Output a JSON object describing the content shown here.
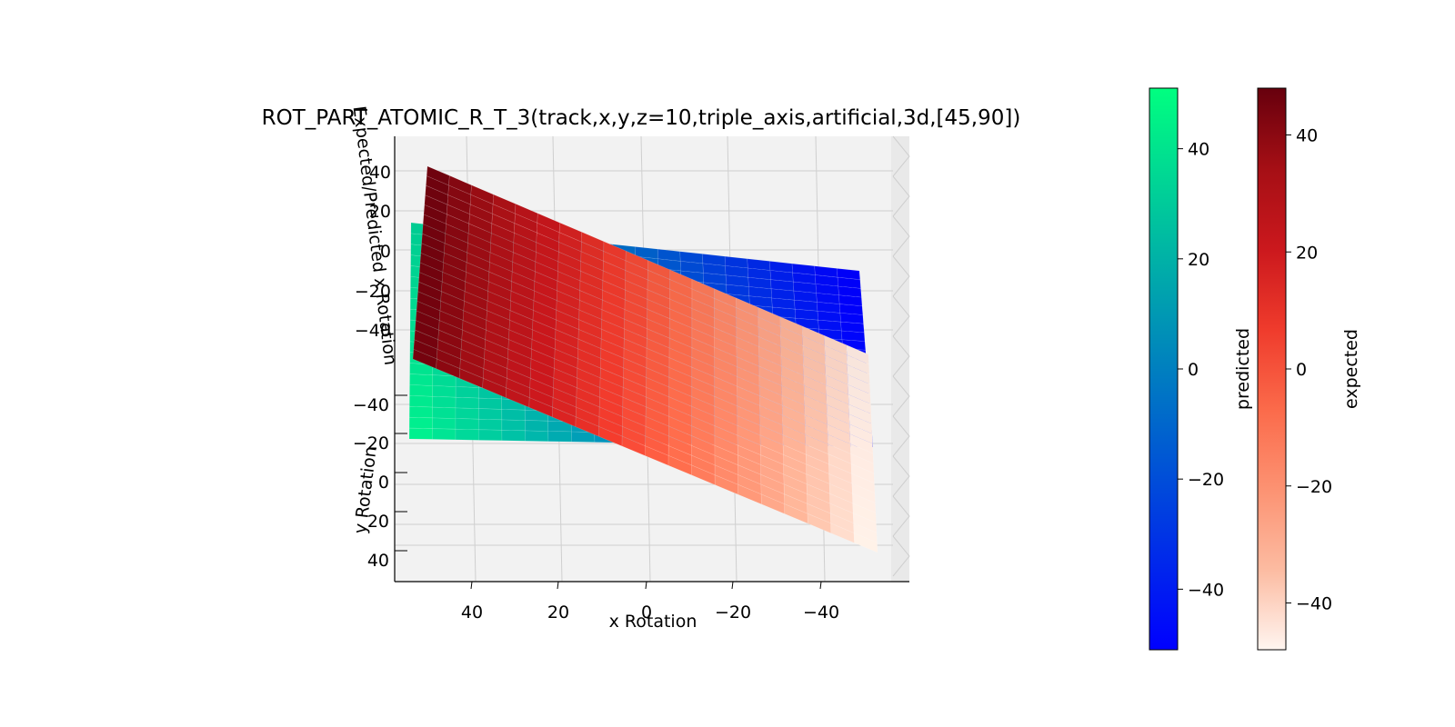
{
  "chart_data": {
    "type": "surface3d",
    "title": "ROT_PART_ATOMIC_R_T_3(track,x,y,z=10,triple_axis,artificial,3d,[45,90])",
    "xlabel": "x Rotation",
    "ylabel": "y Rotation",
    "zlabel": "Expected/Predicted x Rotation",
    "view": {
      "elev": 45,
      "azim": 90
    },
    "x_ticks": [
      40,
      20,
      0,
      -20,
      -40
    ],
    "x_tick_labels": [
      "40",
      "20",
      "0",
      "−20",
      "−40"
    ],
    "y_ticks": [
      -40,
      -20,
      0,
      20,
      40
    ],
    "y_tick_labels": [
      "−40",
      "−20",
      "0",
      "20",
      "40"
    ],
    "z_ticks": [
      40,
      20,
      0,
      -20,
      -40
    ],
    "z_tick_labels": [
      "40",
      "20",
      "0",
      "−20",
      "−40"
    ],
    "xlim": [
      -50,
      50
    ],
    "ylim": [
      -50,
      50
    ],
    "grid": 20,
    "surfaces": [
      {
        "name": "predicted",
        "range": [
          -50,
          50
        ],
        "model": "z = -x",
        "cmap": "winter"
      },
      {
        "name": "expected",
        "range": [
          -48,
          48
        ],
        "model": "z = x",
        "cmap": "Reds"
      }
    ],
    "colorbars": [
      {
        "label": "predicted",
        "min": -51,
        "max": 51,
        "ticks": [
          40,
          20,
          0,
          -20,
          -40
        ],
        "tick_labels": [
          "40",
          "20",
          "0",
          "−20",
          "−40"
        ],
        "colors": [
          "#0000ff",
          "#00ff80"
        ]
      },
      {
        "label": "expected",
        "min": -48,
        "max": 48,
        "ticks": [
          40,
          20,
          0,
          -20,
          -40
        ],
        "tick_labels": [
          "40",
          "20",
          "0",
          "−20",
          "−40"
        ],
        "colors": [
          "#fff5f0",
          "#fcbba1",
          "#fc9272",
          "#fb6a4a",
          "#ef3b2c",
          "#cb181d",
          "#a50f15",
          "#67000d"
        ]
      }
    ]
  }
}
